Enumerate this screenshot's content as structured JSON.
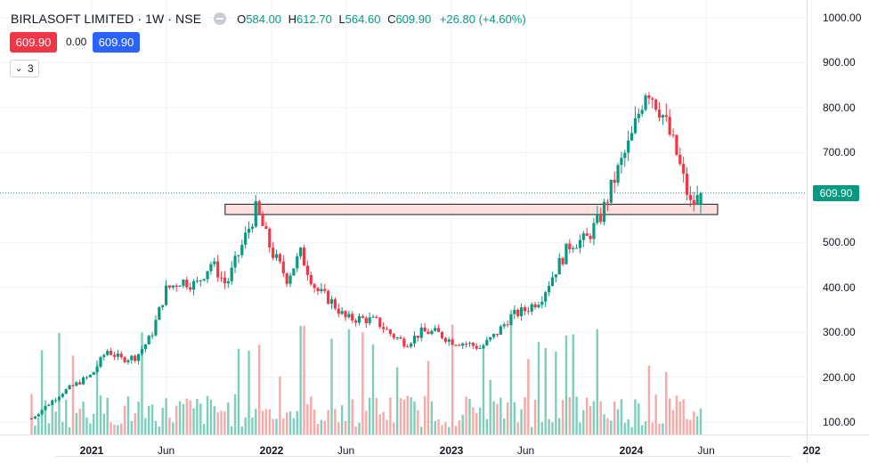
{
  "header": {
    "symbol": "BIRLASOFT LIMITED · 1W · NSE",
    "o_label": "O",
    "o_value": "584.00",
    "h_label": "H",
    "h_value": "612.70",
    "l_label": "L",
    "l_value": "564.60",
    "c_label": "C",
    "c_value": "609.90",
    "change": "+26.80 (+4.60%)"
  },
  "trade": {
    "sell_price": "609.90",
    "spread": "0.00",
    "buy_price": "609.90"
  },
  "indicators": {
    "count": "3"
  },
  "price_axis": {
    "last_price_tag": "609.90"
  },
  "colors": {
    "up": "#089981",
    "down": "#f23645",
    "up_volume": "#7fcdbb",
    "down_volume": "#f7a9a7",
    "zone_fill": "#fde0df",
    "sell": "#f23645",
    "buy": "#2962ff"
  },
  "chart_data": {
    "type": "candlestick",
    "title": "BIRLASOFT LIMITED · 1W · NSE",
    "y_ticks": [
      "1000.00",
      "900.00",
      "800.00",
      "700.00",
      "600.00",
      "500.00",
      "400.00",
      "300.00",
      "200.00",
      "100.00"
    ],
    "x_ticks": [
      {
        "label": "2021",
        "bold": true
      },
      {
        "label": "Jun",
        "bold": false
      },
      {
        "label": "2022",
        "bold": true
      },
      {
        "label": "Jun",
        "bold": false
      },
      {
        "label": "2023",
        "bold": true
      },
      {
        "label": "Jun",
        "bold": false
      },
      {
        "label": "2024",
        "bold": true
      },
      {
        "label": "Jun",
        "bold": false
      },
      {
        "label": "202",
        "bold": true
      }
    ],
    "ylim": [
      60,
      1030
    ],
    "x_range": [
      "2020-09",
      "2025-01"
    ],
    "last_close": 609.9,
    "support_zone": {
      "low": 562,
      "high": 585,
      "from": "2021-12",
      "to": "2024-05"
    },
    "price_path": [
      {
        "date": "2020-09",
        "close": 108
      },
      {
        "date": "2020-11",
        "close": 165
      },
      {
        "date": "2020-12",
        "close": 185
      },
      {
        "date": "2021-01",
        "close": 205
      },
      {
        "date": "2021-02",
        "close": 260
      },
      {
        "date": "2021-03",
        "close": 240
      },
      {
        "date": "2021-04",
        "close": 245
      },
      {
        "date": "2021-05",
        "close": 290
      },
      {
        "date": "2021-06",
        "close": 395
      },
      {
        "date": "2021-07",
        "close": 415
      },
      {
        "date": "2021-08",
        "close": 405
      },
      {
        "date": "2021-09",
        "close": 455
      },
      {
        "date": "2021-10",
        "close": 405
      },
      {
        "date": "2021-11",
        "close": 490
      },
      {
        "date": "2021-12",
        "close": 575
      },
      {
        "date": "2022-01",
        "close": 480
      },
      {
        "date": "2022-02",
        "close": 420
      },
      {
        "date": "2022-03",
        "close": 475
      },
      {
        "date": "2022-04",
        "close": 395
      },
      {
        "date": "2022-05",
        "close": 370
      },
      {
        "date": "2022-06",
        "close": 330
      },
      {
        "date": "2022-07",
        "close": 330
      },
      {
        "date": "2022-08",
        "close": 325
      },
      {
        "date": "2022-09",
        "close": 295
      },
      {
        "date": "2022-10",
        "close": 275
      },
      {
        "date": "2022-11",
        "close": 300
      },
      {
        "date": "2022-12",
        "close": 300
      },
      {
        "date": "2023-01",
        "close": 280
      },
      {
        "date": "2023-02",
        "close": 275
      },
      {
        "date": "2023-03",
        "close": 265
      },
      {
        "date": "2023-04",
        "close": 295
      },
      {
        "date": "2023-05",
        "close": 335
      },
      {
        "date": "2023-06",
        "close": 350
      },
      {
        "date": "2023-07",
        "close": 375
      },
      {
        "date": "2023-08",
        "close": 440
      },
      {
        "date": "2023-09",
        "close": 500
      },
      {
        "date": "2023-10",
        "close": 505
      },
      {
        "date": "2023-11",
        "close": 560
      },
      {
        "date": "2023-12",
        "close": 650
      },
      {
        "date": "2024-01",
        "close": 730
      },
      {
        "date": "2024-02",
        "close": 850
      },
      {
        "date": "2024-03",
        "close": 795
      },
      {
        "date": "2024-04",
        "close": 700
      },
      {
        "date": "2024-05",
        "close": 580
      },
      {
        "date": "2024-05-24",
        "close": 609.9
      }
    ]
  }
}
